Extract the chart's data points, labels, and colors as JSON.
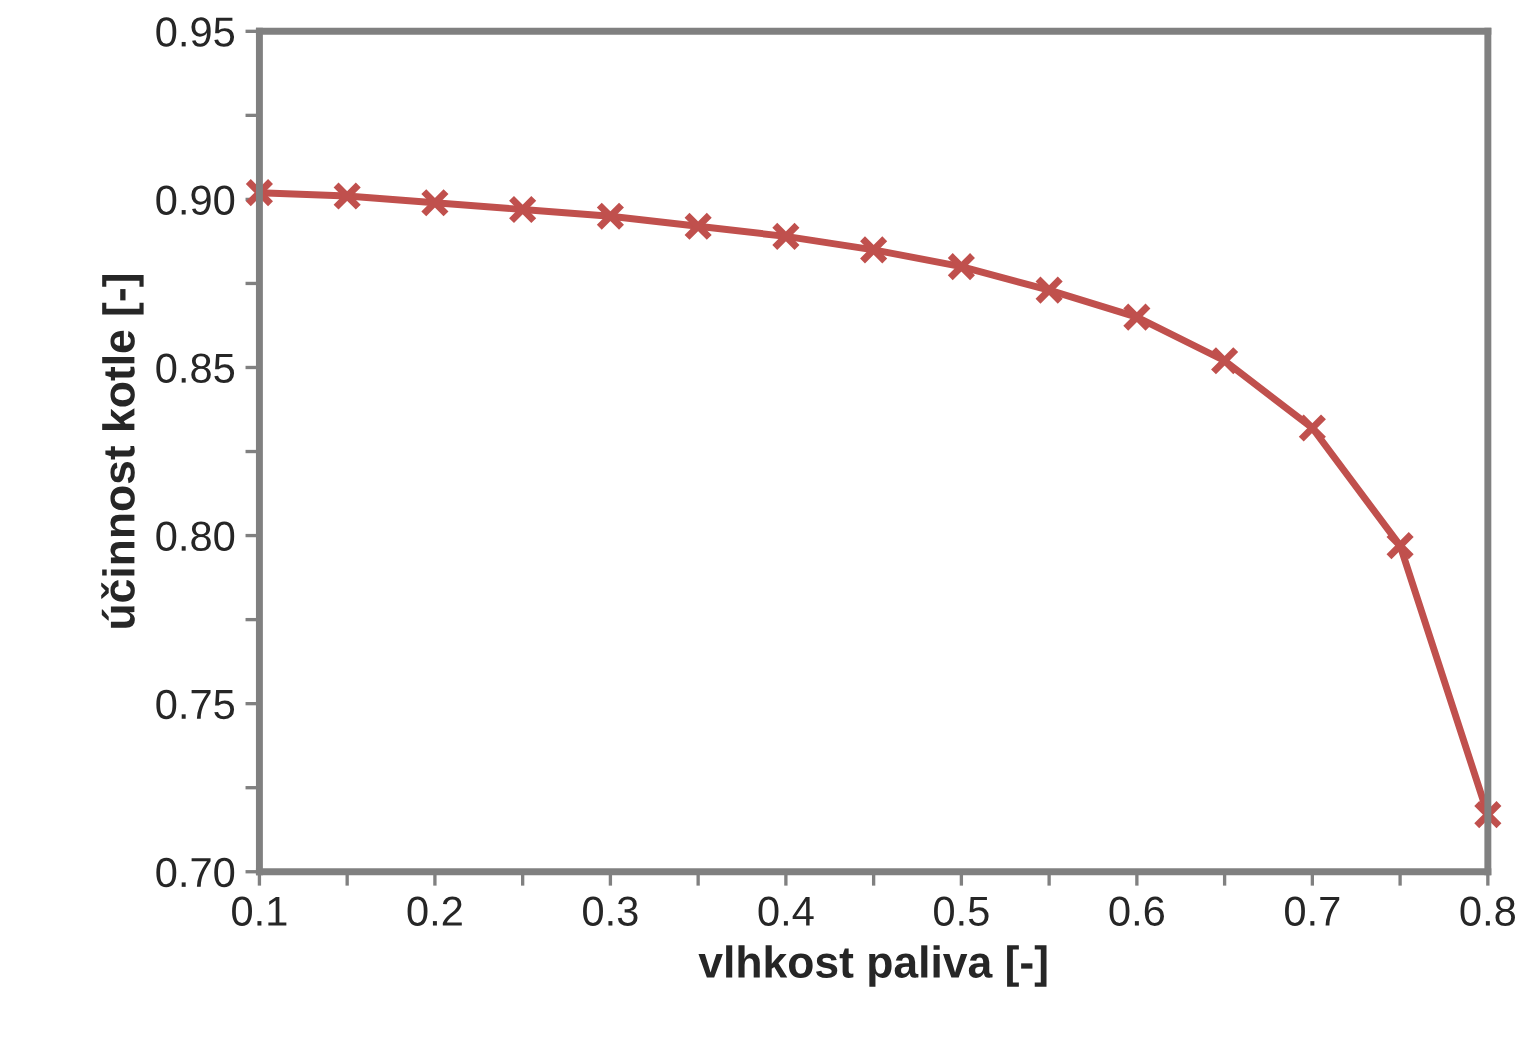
{
  "chart_data": {
    "type": "line",
    "xlabel": "vlhkost paliva [-]",
    "ylabel": "účinnost kotle [-]",
    "x": [
      0.1,
      0.15,
      0.2,
      0.25,
      0.3,
      0.35,
      0.4,
      0.45,
      0.5,
      0.55,
      0.6,
      0.65,
      0.7,
      0.75,
      0.8
    ],
    "series": [
      {
        "color": "#c0504d",
        "values": [
          0.902,
          0.901,
          0.899,
          0.897,
          0.895,
          0.892,
          0.889,
          0.885,
          0.88,
          0.873,
          0.865,
          0.852,
          0.832,
          0.797,
          0.717
        ]
      }
    ],
    "xlim": [
      0.1,
      0.8
    ],
    "ylim": [
      0.7,
      0.95
    ],
    "xticks": [
      0.1,
      {
        "value": 0.15,
        "label": null
      },
      0.2,
      {
        "value": 0.25,
        "label": null
      },
      0.3,
      {
        "value": 0.35,
        "label": null
      },
      0.4,
      {
        "value": 0.45,
        "label": null
      },
      0.5,
      {
        "value": 0.55,
        "label": null
      },
      0.6,
      {
        "value": 0.65,
        "label": null
      },
      0.7,
      {
        "value": 0.75,
        "label": null
      },
      0.8
    ],
    "yticks": [
      {
        "value": 0.7,
        "label": "0.70"
      },
      {
        "value": 0.725,
        "label": null
      },
      0.75,
      {
        "value": 0.775,
        "label": null
      },
      {
        "value": 0.8,
        "label": "0.80"
      },
      {
        "value": 0.825,
        "label": null
      },
      0.85,
      {
        "value": 0.875,
        "label": null
      },
      {
        "value": 0.9,
        "label": "0.90"
      },
      {
        "value": 0.925,
        "label": null
      },
      0.95
    ],
    "grid": false,
    "legend": false,
    "marker": "cross",
    "line_style": "solid"
  }
}
